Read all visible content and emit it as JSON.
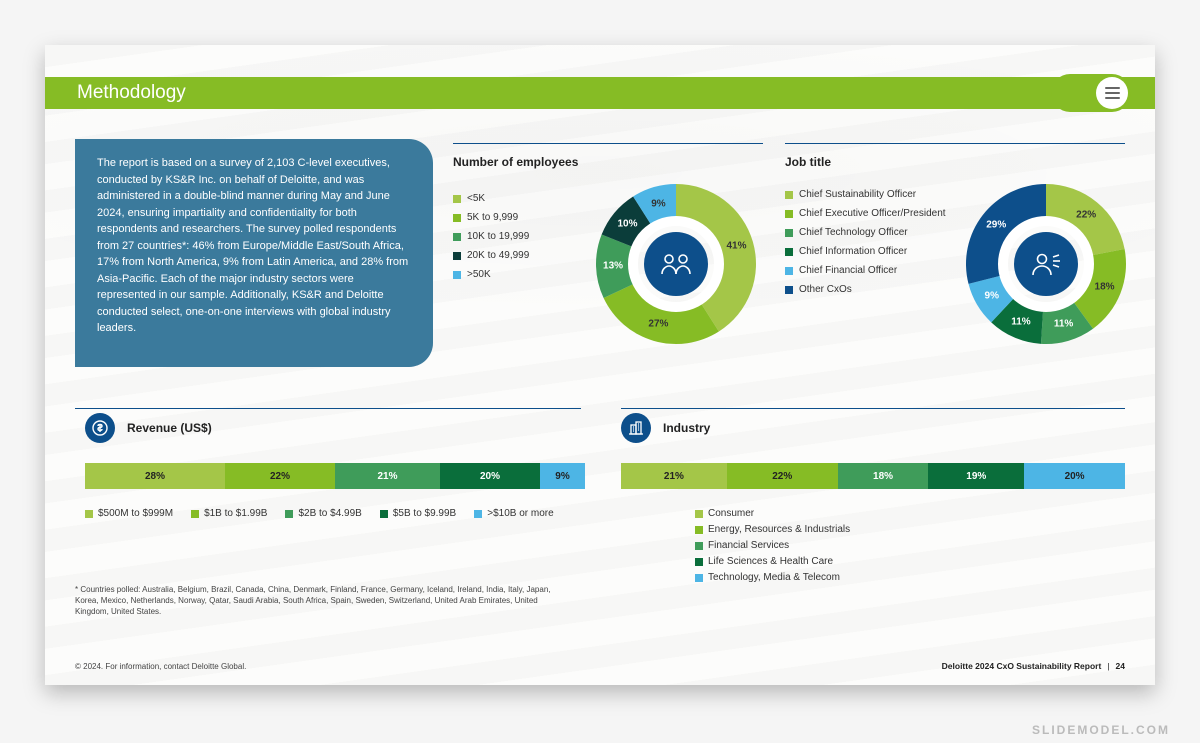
{
  "colors": {
    "lime": "#86bc25",
    "olive": "#a4c648",
    "greenMed": "#3f9c5a",
    "greenDark": "#0a6e3b",
    "tealDark": "#0b3d3a",
    "navy": "#0d4f8b",
    "sky": "#4db5e5",
    "panel": "#3b7a9c",
    "white": "#ffffff"
  },
  "header": {
    "title": "Methodology"
  },
  "intro": "The report is based on a survey of 2,103 C-level executives, conducted by KS&R Inc. on behalf of Deloitte, and was administered in a double-blind manner during May and June 2024, ensuring impartiality and confidentiality for both respondents and researchers. The survey polled respondents from 27 countries*: 46% from Europe/Middle East/South Africa, 17% from North America, 9% from Latin America, and 28% from Asia-Pacific. Each of the major industry sectors were represented in our sample. Additionally, KS&R and Deloitte conducted select, one-on-one interviews with global industry leaders.",
  "employees": {
    "title": "Number of employees",
    "items": [
      {
        "label": "<5K",
        "value": 41,
        "color": "#a4c648",
        "labelWhite": false
      },
      {
        "label": "5K to 9,999",
        "value": 27,
        "color": "#86bc25",
        "labelWhite": false
      },
      {
        "label": "10K to 19,999",
        "value": 13,
        "color": "#3f9c5a",
        "labelWhite": true
      },
      {
        "label": "20K to 49,999",
        "value": 10,
        "color": "#0b3d3a",
        "labelWhite": true
      },
      {
        "label": ">50K",
        "value": 9,
        "color": "#4db5e5",
        "labelWhite": false
      }
    ]
  },
  "jobtitle": {
    "title": "Job title",
    "items": [
      {
        "label": "Chief Sustainability Officer",
        "value": 22,
        "color": "#a4c648",
        "labelWhite": false
      },
      {
        "label": "Chief Executive Officer/President",
        "value": 18,
        "color": "#86bc25",
        "labelWhite": false
      },
      {
        "label": "Chief Technology Officer",
        "value": 11,
        "color": "#3f9c5a",
        "labelWhite": true
      },
      {
        "label": "Chief Information Officer",
        "value": 11,
        "color": "#0a6e3b",
        "labelWhite": true
      },
      {
        "label": "Chief Financial Officer",
        "value": 9,
        "color": "#4db5e5",
        "labelWhite": true
      },
      {
        "label": "Other CxOs",
        "value": 29,
        "color": "#0d4f8b",
        "labelWhite": true
      }
    ]
  },
  "revenue": {
    "title": "Revenue (US$)",
    "items": [
      {
        "label": "$500M to $999M",
        "value": 28,
        "color": "#a4c648",
        "textWhite": false
      },
      {
        "label": "$1B to $1.99B",
        "value": 22,
        "color": "#86bc25",
        "textWhite": false
      },
      {
        "label": "$2B to $4.99B",
        "value": 21,
        "color": "#3f9c5a",
        "textWhite": true
      },
      {
        "label": "$5B to $9.99B",
        "value": 20,
        "color": "#0a6e3b",
        "textWhite": true
      },
      {
        "label": ">$10B or more",
        "value": 9,
        "color": "#4db5e5",
        "textWhite": false
      }
    ]
  },
  "industry": {
    "title": "Industry",
    "items": [
      {
        "label": "Consumer",
        "value": 21,
        "color": "#a4c648",
        "textWhite": false
      },
      {
        "label": "Energy, Resources & Industrials",
        "value": 22,
        "color": "#86bc25",
        "textWhite": false
      },
      {
        "label": "Financial Services",
        "value": 18,
        "color": "#3f9c5a",
        "textWhite": true
      },
      {
        "label": "Life Sciences & Health Care",
        "value": 19,
        "color": "#0a6e3b",
        "textWhite": true
      },
      {
        "label": "Technology, Media & Telecom",
        "value": 20,
        "color": "#4db5e5",
        "textWhite": false
      }
    ]
  },
  "footnote": "* Countries polled: Australia, Belgium, Brazil, Canada, China, Denmark, Finland, France, Germany, Iceland, Ireland, India, Italy, Japan, Korea, Mexico, Netherlands, Norway, Qatar, Saudi Arabia, South Africa, Spain, Sweden, Switzerland, United Arab Emirates, United Kingdom, United States.",
  "copyright": "© 2024. For information, contact Deloitte Global.",
  "reportFooter": {
    "text": "Deloitte 2024 CxO Sustainability Report",
    "page": "24"
  },
  "watermark": "SLIDEMODEL.COM"
}
